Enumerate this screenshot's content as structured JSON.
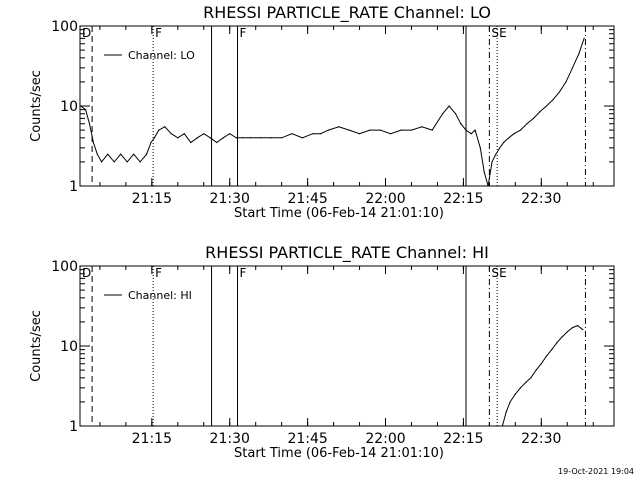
{
  "footer": {
    "timestamp": "19-Oct-2021 19:04"
  },
  "chart_data": [
    {
      "type": "line",
      "title": "RHESSI PARTICLE_RATE Channel: LO",
      "xlabel": "Start Time (06-Feb-14 21:01:10)",
      "ylabel": "Counts/sec",
      "y_scale": "log",
      "ylim": [
        1,
        100
      ],
      "y_ticks": [
        "1",
        "10",
        "100"
      ],
      "xlim": [
        "21:01:10",
        "22:44:00"
      ],
      "x_ticks": [
        "21:15",
        "21:30",
        "21:45",
        "22:00",
        "22:15",
        "22:30"
      ],
      "legend": {
        "placement": "top-left",
        "entries": [
          "Channel: LO"
        ]
      },
      "flags": [
        {
          "label": "D",
          "time": "21:01:10"
        },
        {
          "label": "F",
          "time": "21:15:15"
        },
        {
          "label": "F",
          "time": "21:31:30"
        },
        {
          "label": "S",
          "time": "22:20:00"
        },
        {
          "label": "E",
          "time": "22:21:30"
        }
      ],
      "markers": [
        {
          "time": "21:03:30",
          "style": "dashed"
        },
        {
          "time": "21:15:15",
          "style": "dotted"
        },
        {
          "time": "21:26:30",
          "style": "solid"
        },
        {
          "time": "21:31:30",
          "style": "solid"
        },
        {
          "time": "22:15:30",
          "style": "solid"
        },
        {
          "time": "22:20:00",
          "style": "dashdot"
        },
        {
          "time": "22:21:30",
          "style": "dotted"
        },
        {
          "time": "22:38:30",
          "style": "dashdot"
        }
      ],
      "series": [
        {
          "name": "Channel: LO",
          "x": [
            "21:01:20",
            "21:02:15",
            "21:03:00",
            "21:03:45",
            "21:04:30",
            "21:05:20",
            "21:06:30",
            "21:07:45",
            "21:09:00",
            "21:10:15",
            "21:11:30",
            "21:12:45",
            "21:14:00",
            "21:14:50",
            "21:15:30",
            "21:16:20",
            "21:17:30",
            "21:18:45",
            "21:20:00",
            "21:21:15",
            "21:22:30",
            "21:23:45",
            "21:25:00",
            "21:26:15",
            "21:27:30",
            "21:28:45",
            "21:30:00",
            "21:31:15",
            "21:32:30",
            "21:34:00",
            "21:36:00",
            "21:38:00",
            "21:40:00",
            "21:42:00",
            "21:44:00",
            "21:46:00",
            "21:47:30",
            "21:49:00",
            "21:51:00",
            "21:53:00",
            "21:55:00",
            "21:57:00",
            "21:59:00",
            "22:01:00",
            "22:03:00",
            "22:05:00",
            "22:07:00",
            "22:09:00",
            "22:11:00",
            "22:12:15",
            "22:13:30",
            "22:14:30",
            "22:15:30",
            "22:16:30",
            "22:17:15",
            "22:18:15",
            "22:19:00",
            "22:19:45",
            "22:20:30",
            "22:21:15",
            "22:22:00",
            "22:22:45",
            "22:23:45",
            "22:24:45",
            "22:26:00",
            "22:27:15",
            "22:28:30",
            "22:29:45",
            "22:31:00",
            "22:32:15",
            "22:33:30",
            "22:34:45",
            "22:36:00",
            "22:37:15",
            "22:38:15"
          ],
          "y": [
            10,
            9,
            6,
            3.5,
            2.5,
            2,
            2.5,
            2,
            2.5,
            2,
            2.5,
            2,
            2.5,
            3.5,
            4,
            5,
            5.5,
            4.5,
            4,
            4.5,
            3.5,
            4,
            4.5,
            4,
            3.5,
            4,
            4.5,
            4,
            4,
            4,
            4,
            4,
            4,
            4.5,
            4,
            4.5,
            4.5,
            5,
            5.5,
            5,
            4.5,
            5,
            5,
            4.5,
            5,
            5,
            5.5,
            5,
            8,
            10,
            8,
            6,
            5,
            4.5,
            5,
            3,
            1.5,
            1,
            2,
            2.5,
            3,
            3.5,
            4,
            4.5,
            5,
            6,
            7,
            8.5,
            10,
            12,
            15,
            20,
            30,
            45,
            70
          ]
        }
      ]
    },
    {
      "type": "line",
      "title": "RHESSI PARTICLE_RATE Channel: HI",
      "xlabel": "Start Time (06-Feb-14 21:01:10)",
      "ylabel": "Counts/sec",
      "y_scale": "log",
      "ylim": [
        1,
        100
      ],
      "y_ticks": [
        "1",
        "10",
        "100"
      ],
      "xlim": [
        "21:01:10",
        "22:44:00"
      ],
      "x_ticks": [
        "21:15",
        "21:30",
        "21:45",
        "22:00",
        "22:15",
        "22:30"
      ],
      "legend": {
        "placement": "top-left",
        "entries": [
          "Channel: HI"
        ]
      },
      "flags": [
        {
          "label": "D",
          "time": "21:01:10"
        },
        {
          "label": "F",
          "time": "21:15:15"
        },
        {
          "label": "F",
          "time": "21:31:30"
        },
        {
          "label": "S",
          "time": "22:20:00"
        },
        {
          "label": "E",
          "time": "22:21:30"
        }
      ],
      "markers": [
        {
          "time": "21:03:30",
          "style": "dashed"
        },
        {
          "time": "21:15:15",
          "style": "dotted"
        },
        {
          "time": "21:26:30",
          "style": "solid"
        },
        {
          "time": "21:31:30",
          "style": "solid"
        },
        {
          "time": "22:15:30",
          "style": "solid"
        },
        {
          "time": "22:20:00",
          "style": "dashdot"
        },
        {
          "time": "22:21:30",
          "style": "dotted"
        },
        {
          "time": "22:38:30",
          "style": "dashdot"
        }
      ],
      "series": [
        {
          "name": "Channel: HI",
          "x": [
            "22:22:30",
            "22:23:15",
            "22:24:00",
            "22:25:00",
            "22:26:00",
            "22:27:00",
            "22:28:00",
            "22:29:00",
            "22:30:00",
            "22:31:00",
            "22:32:00",
            "22:33:00",
            "22:34:00",
            "22:35:00",
            "22:36:00",
            "22:37:00",
            "22:38:00"
          ],
          "y": [
            1,
            1.5,
            2,
            2.5,
            3,
            3.5,
            4,
            5,
            6,
            7.5,
            9,
            11,
            13,
            15,
            17,
            18,
            16
          ]
        }
      ]
    }
  ]
}
